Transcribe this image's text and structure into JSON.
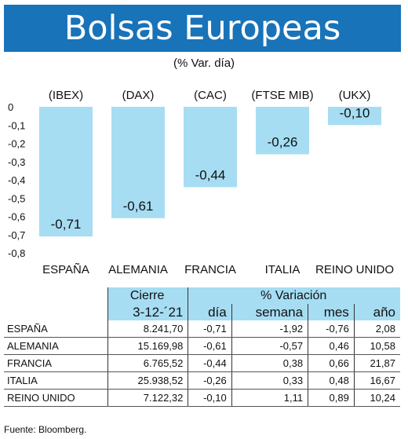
{
  "header": {
    "title": "Bolsas Europeas",
    "subtitle": "(% Var. día)"
  },
  "chart_data": {
    "type": "bar",
    "categories": [
      "ESPAÑA",
      "ALEMANIA",
      "FRANCIA",
      "ITALIA",
      "REINO UNIDO"
    ],
    "indices": [
      "(IBEX)",
      "(DAX)",
      "(CAC)",
      "(FTSE MIB)",
      "(UKX)"
    ],
    "values": [
      -0.71,
      -0.61,
      -0.44,
      -0.26,
      -0.1
    ],
    "value_labels": [
      "-0,71",
      "-0,61",
      "-0,44",
      "-0,26",
      "-0,10"
    ],
    "ylim": [
      -0.8,
      0
    ],
    "yticks": [
      0,
      -0.1,
      -0.2,
      -0.3,
      -0.4,
      -0.5,
      -0.6,
      -0.7,
      -0.8
    ],
    "ytick_labels": [
      "0",
      "-0,1",
      "-0,2",
      "-0,3",
      "-0,4",
      "-0,5",
      "-0,6",
      "-0,7",
      "-0,8"
    ],
    "bar_color": "#a6ddf3",
    "grid": false
  },
  "table": {
    "group_headers": [
      "Cierre",
      "% Variación"
    ],
    "columns": [
      "3-12-´21",
      "día",
      "semana",
      "mes",
      "año"
    ],
    "rows": [
      {
        "name": "ESPAÑA",
        "cierre": "8.241,70",
        "dia": "-0,71",
        "semana": "-1,92",
        "mes": "-0,76",
        "ano": "2,08"
      },
      {
        "name": "ALEMANIA",
        "cierre": "15.169,98",
        "dia": "-0,61",
        "semana": "-0,57",
        "mes": "0,46",
        "ano": "10,58"
      },
      {
        "name": "FRANCIA",
        "cierre": "6.765,52",
        "dia": "-0,44",
        "semana": "0,38",
        "mes": "0,66",
        "ano": "21,87"
      },
      {
        "name": "ITALIA",
        "cierre": "25.938,52",
        "dia": "-0,26",
        "semana": "0,33",
        "mes": "0,48",
        "ano": "16,67"
      },
      {
        "name": "REINO UNIDO",
        "cierre": "7.122,32",
        "dia": "-0,10",
        "semana": "1,11",
        "mes": "0,89",
        "ano": "10,24"
      }
    ]
  },
  "source": "Fuente: Bloomberg.",
  "colors": {
    "banner": "#1873b9",
    "accent": "#a6ddf3"
  }
}
